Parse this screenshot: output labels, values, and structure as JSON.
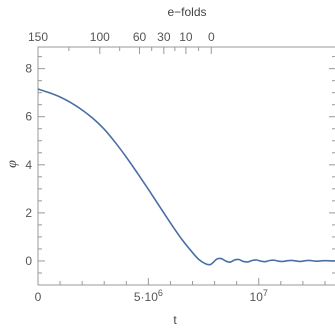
{
  "chart_data": {
    "type": "line",
    "title": "",
    "xlabel": "t",
    "ylabel": "φ",
    "top_axis_label": "e−folds",
    "xlim": [
      0,
      13500000
    ],
    "ylim": [
      -1,
      8.9
    ],
    "grid": false,
    "legend": "none",
    "x_ticks": [
      {
        "value": 0,
        "label": "0"
      },
      {
        "value": 5000000,
        "label": "5·10",
        "sup": "6"
      },
      {
        "value": 10000000,
        "label": "10",
        "sup": "7"
      }
    ],
    "y_ticks": [
      {
        "value": 0,
        "label": "0"
      },
      {
        "value": 2,
        "label": "2"
      },
      {
        "value": 4,
        "label": "4"
      },
      {
        "value": 6,
        "label": "6"
      },
      {
        "value": 8,
        "label": "8"
      }
    ],
    "top_ticks": [
      {
        "t": 0,
        "label": "150"
      },
      {
        "t": 2800000,
        "label": "100"
      },
      {
        "t": 4600000,
        "label": "60"
      },
      {
        "t": 5700000,
        "label": "30"
      },
      {
        "t": 6700000,
        "label": "10"
      },
      {
        "t": 7850000,
        "label": "0"
      }
    ],
    "series": [
      {
        "color": "#4a6fa5",
        "x": [
          0,
          500000,
          1000000,
          1500000,
          2000000,
          2500000,
          3000000,
          3500000,
          4000000,
          4500000,
          5000000,
          5500000,
          6000000,
          6500000,
          7000000,
          7300000,
          7600000,
          7800000,
          7950000,
          8100000,
          8300000,
          8500000,
          8700000,
          8900000,
          9100000,
          9300000,
          9500000,
          9700000,
          9900000,
          10100000,
          10300000,
          10500000,
          10700000,
          10900000,
          11100000,
          11300000,
          11500000,
          11700000,
          11900000,
          12100000,
          12300000,
          12500000,
          12700000,
          12900000,
          13100000,
          13300000,
          13500000
        ],
        "y": [
          7.15,
          7.0,
          6.82,
          6.58,
          6.28,
          5.92,
          5.48,
          4.93,
          4.32,
          3.66,
          2.98,
          2.28,
          1.58,
          0.92,
          0.35,
          0.05,
          -0.12,
          -0.15,
          -0.05,
          0.08,
          0.1,
          0.0,
          -0.05,
          0.04,
          0.06,
          -0.02,
          -0.04,
          0.02,
          0.04,
          -0.01,
          -0.03,
          0.02,
          0.03,
          -0.01,
          -0.02,
          0.01,
          0.02,
          0.0,
          -0.02,
          0.01,
          0.02,
          0.0,
          -0.01,
          0.01,
          0.01,
          0.0,
          0.0
        ]
      }
    ]
  }
}
